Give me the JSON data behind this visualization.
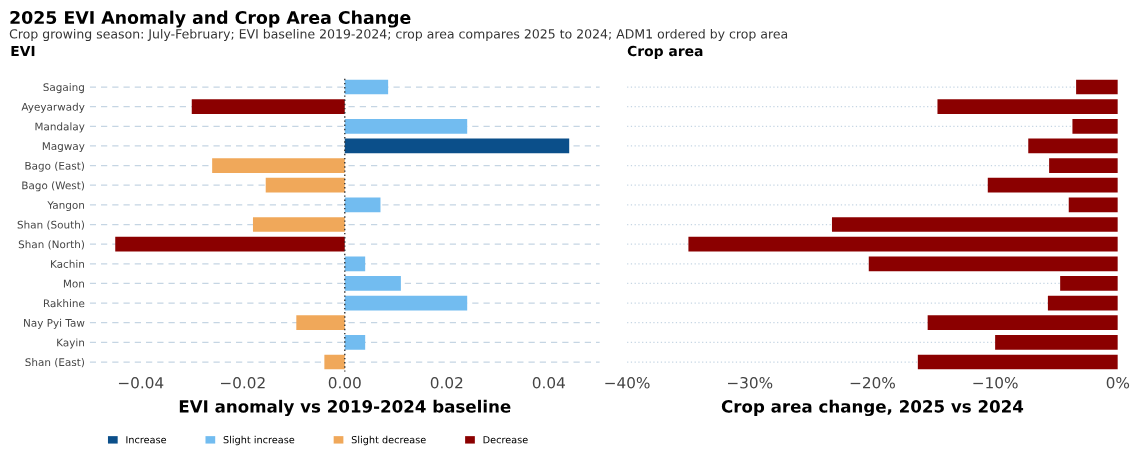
{
  "chart_data": [
    {
      "type": "bar",
      "orientation": "horizontal",
      "title": "2025 EVI Anomaly and Crop Area Change",
      "subtitle": "Crop growing season: July-February; EVI baseline 2019-2024; crop area compares 2025 to 2024; ADM1 ordered by crop area",
      "ylabel": "EVI",
      "xlabel": "EVI anomaly vs 2019-2024 baseline",
      "categories": [
        "Sagaing",
        "Ayeyarwady",
        "Mandalay",
        "Magway",
        "Bago (East)",
        "Bago (West)",
        "Yangon",
        "Shan (South)",
        "Shan (North)",
        "Kachin",
        "Mon",
        "Rakhine",
        "Nay Pyi Taw",
        "Kayin",
        "Shan (East)"
      ],
      "series": [
        {
          "name": "Increase",
          "color": "#0b4f8a",
          "values": [
            null,
            null,
            null,
            0.044,
            null,
            null,
            null,
            null,
            null,
            null,
            null,
            null,
            null,
            null,
            null
          ]
        },
        {
          "name": "Slight increase",
          "color": "#72bcf0",
          "values": [
            0.0085,
            null,
            0.024,
            null,
            null,
            null,
            0.007,
            null,
            null,
            0.004,
            0.011,
            0.024,
            null,
            0.004,
            null
          ]
        },
        {
          "name": "Slight decrease",
          "color": "#f0a85a",
          "values": [
            null,
            null,
            null,
            null,
            -0.026,
            -0.0155,
            null,
            -0.018,
            null,
            null,
            null,
            null,
            -0.0095,
            null,
            -0.004
          ]
        },
        {
          "name": "Decrease",
          "color": "#8b0000",
          "values": [
            null,
            -0.03,
            null,
            null,
            null,
            null,
            null,
            null,
            -0.045,
            null,
            null,
            null,
            null,
            null,
            null
          ]
        }
      ],
      "xlim": [
        -0.05,
        0.05
      ],
      "xticks": [
        {
          "value": -0.04,
          "label": "−0.04"
        },
        {
          "value": -0.02,
          "label": "−0.02"
        },
        {
          "value": 0,
          "label": "0.00"
        },
        {
          "value": 0.02,
          "label": "0.02"
        },
        {
          "value": 0.04,
          "label": "0.04"
        }
      ],
      "grid": "y",
      "line_style": "dashed",
      "legend": "bottom",
      "ref_lines": [
        {
          "axis": "x",
          "value": 0,
          "color": "#333333",
          "line_style": "dotted"
        }
      ]
    },
    {
      "type": "bar",
      "orientation": "horizontal",
      "ylabel": "Crop area",
      "xlabel": "Crop area change, 2025 vs 2024",
      "categories": [
        null,
        null,
        null,
        null,
        null,
        null,
        null,
        null,
        null,
        null,
        null,
        null,
        null,
        null,
        null
      ],
      "series": [
        {
          "color": "#8b0000",
          "values": [
            -3.4,
            -14.7,
            -3.7,
            -7.3,
            -5.6,
            -10.6,
            -4.0,
            -23.3,
            -35.0,
            -20.3,
            -4.7,
            -5.7,
            -15.5,
            -10.0,
            -16.3
          ]
        }
      ],
      "xlim": [
        -40,
        0
      ],
      "xticks": [
        {
          "value": -40,
          "label": "−40%"
        },
        {
          "value": -30,
          "label": "−30%"
        },
        {
          "value": -20,
          "label": "−20%"
        },
        {
          "value": -10,
          "label": "−10%"
        },
        {
          "value": 0,
          "label": "0%"
        }
      ],
      "grid": "y",
      "line_style": "dotted",
      "tick_labels": "x"
    }
  ]
}
